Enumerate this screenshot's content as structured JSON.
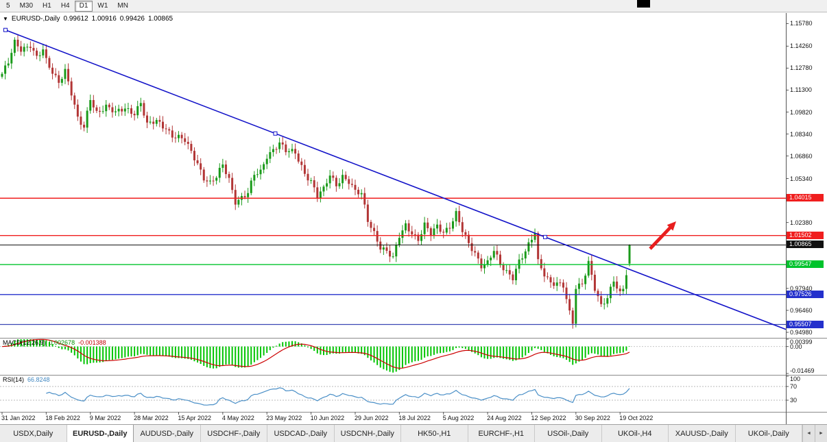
{
  "toolbar": {
    "timeframes": [
      "5",
      "M30",
      "H1",
      "H4",
      "D1",
      "W1",
      "MN"
    ],
    "active_timeframe": "D1"
  },
  "header": {
    "dropdown_icon": "▼",
    "symbol": "EURUSD-,Daily",
    "open": "0.99612",
    "high": "1.00916",
    "low": "0.99426",
    "close": "1.00865"
  },
  "price_axis": {
    "ticks": [
      "1.15780",
      "1.14260",
      "1.12780",
      "1.11300",
      "1.09820",
      "1.08340",
      "1.06860",
      "1.05340",
      "1.02380",
      "0.97940",
      "0.96460",
      "0.94980"
    ],
    "badges": [
      {
        "text": "1.04015",
        "bg": "#f01e1e"
      },
      {
        "text": "1.01502",
        "bg": "#f01e1e"
      },
      {
        "text": "1.00865",
        "bg": "#111111"
      },
      {
        "text": "0.99547",
        "bg": "#00c32c"
      },
      {
        "text": "0.97526",
        "bg": "#2430cc"
      },
      {
        "text": "0.95507",
        "bg": "#2430cc"
      }
    ]
  },
  "indicators": {
    "macd": {
      "name": "MACD(12,26,9)",
      "value_main": "0.002678",
      "value_signal": "-0.001388",
      "axis_labels": [
        "0.00399",
        "0.00",
        "-0.01469"
      ]
    },
    "rsi": {
      "name": "RSI(14)",
      "value": "66.8248",
      "axis_labels": [
        "100",
        "70",
        "30"
      ]
    }
  },
  "date_axis": {
    "labels": [
      "31 Jan 2022",
      "18 Feb 2022",
      "9 Mar 2022",
      "28 Mar 2022",
      "15 Apr 2022",
      "4 May 2022",
      "23 May 2022",
      "10 Jun 2022",
      "29 Jun 2022",
      "18 Jul 2022",
      "5 Aug 2022",
      "24 Aug 2022",
      "12 Sep 2022",
      "30 Sep 2022",
      "19 Oct 2022"
    ]
  },
  "tabs": {
    "scroll_left": "◄",
    "scroll_right": "►",
    "items": [
      {
        "label": "USDX,Daily"
      },
      {
        "label": "EURUSD-,Daily",
        "active": true
      },
      {
        "label": "AUDUSD-,Daily"
      },
      {
        "label": "USDCHF-,Daily"
      },
      {
        "label": "USDCAD-,Daily"
      },
      {
        "label": "USDCNH-,Daily"
      },
      {
        "label": "HK50-,H1"
      },
      {
        "label": "EURCHF-,H1"
      },
      {
        "label": "USOil-,Daily"
      },
      {
        "label": "UKOil-,H4"
      },
      {
        "label": "XAUUSD-,Daily"
      },
      {
        "label": "UKOil-,Daily"
      }
    ]
  },
  "chart_data": {
    "type": "candlestick",
    "title": "EURUSD-,Daily",
    "ylim": [
      0.947,
      1.164
    ],
    "bars_total": 200,
    "bars_per_tick": 14,
    "final_bar": {
      "open": 0.99612,
      "high": 1.00916,
      "low": 0.99426,
      "close": 1.00865
    },
    "close_anchors": [
      [
        0,
        1.124
      ],
      [
        2,
        1.131
      ],
      [
        4,
        1.1445
      ],
      [
        6,
        1.1405
      ],
      [
        9,
        1.144
      ],
      [
        11,
        1.135
      ],
      [
        13,
        1.1395
      ],
      [
        14,
        1.132
      ],
      [
        16,
        1.1245
      ],
      [
        18,
        1.119
      ],
      [
        20,
        1.127
      ],
      [
        22,
        1.111
      ],
      [
        24,
        1.093
      ],
      [
        26,
        1.087
      ],
      [
        28,
        1.1075
      ],
      [
        30,
        1.0985
      ],
      [
        33,
        1.102
      ],
      [
        36,
        1.097
      ],
      [
        39,
        1.101
      ],
      [
        42,
        1.098
      ],
      [
        44,
        1.1045
      ],
      [
        46,
        1.089
      ],
      [
        49,
        1.092
      ],
      [
        52,
        1.088
      ],
      [
        54,
        1.0825
      ],
      [
        56,
        1.0808
      ],
      [
        58,
        1.0785
      ],
      [
        60,
        1.071
      ],
      [
        62,
        1.064
      ],
      [
        64,
        1.0545
      ],
      [
        66,
        1.0505
      ],
      [
        68,
        1.054
      ],
      [
        70,
        1.062
      ],
      [
        72,
        1.053
      ],
      [
        74,
        1.0385
      ],
      [
        76,
        1.041
      ],
      [
        78,
        1.0435
      ],
      [
        80,
        1.0555
      ],
      [
        82,
        1.0575
      ],
      [
        84,
        1.069
      ],
      [
        86,
        1.0735
      ],
      [
        88,
        1.0775
      ],
      [
        90,
        1.0715
      ],
      [
        93,
        1.0705
      ],
      [
        96,
        1.0575
      ],
      [
        98,
        1.052
      ],
      [
        100,
        1.0415
      ],
      [
        102,
        1.0455
      ],
      [
        104,
        1.0555
      ],
      [
        106,
        1.0495
      ],
      [
        108,
        1.0555
      ],
      [
        110,
        1.0515
      ],
      [
        112,
        1.044
      ],
      [
        114,
        1.0425
      ],
      [
        116,
        1.0255
      ],
      [
        118,
        1.0175
      ],
      [
        120,
        1.0075
      ],
      [
        122,
        1.004
      ],
      [
        124,
        0.999
      ],
      [
        126,
        1.0145
      ],
      [
        128,
        1.0225
      ],
      [
        130,
        1.0175
      ],
      [
        132,
        1.012
      ],
      [
        134,
        1.0215
      ],
      [
        136,
        1.0155
      ],
      [
        138,
        1.0215
      ],
      [
        140,
        1.018
      ],
      [
        142,
        1.0215
      ],
      [
        144,
        1.0295
      ],
      [
        146,
        1.0175
      ],
      [
        148,
        1.009
      ],
      [
        150,
        1.0035
      ],
      [
        152,
        0.9955
      ],
      [
        154,
        0.997
      ],
      [
        156,
        1.0045
      ],
      [
        158,
        0.9945
      ],
      [
        160,
        0.9905
      ],
      [
        162,
        0.9875
      ],
      [
        164,
        0.9985
      ],
      [
        166,
        1.004
      ],
      [
        168,
        1.012
      ],
      [
        169,
        1.0165
      ],
      [
        170,
        0.997
      ],
      [
        172,
        0.9895
      ],
      [
        174,
        0.984
      ],
      [
        176,
        0.983
      ],
      [
        178,
        0.9805
      ],
      [
        180,
        0.962
      ],
      [
        181,
        0.956
      ],
      [
        182,
        0.98
      ],
      [
        184,
        0.9835
      ],
      [
        186,
        0.9975
      ],
      [
        188,
        0.979
      ],
      [
        190,
        0.9665
      ],
      [
        192,
        0.9725
      ],
      [
        194,
        0.9855
      ],
      [
        196,
        0.977
      ],
      [
        197,
        0.98
      ],
      [
        198,
        0.99
      ],
      [
        199,
        1.00865
      ]
    ],
    "hlines": [
      {
        "price": 1.04015,
        "color": "#f01e1e",
        "width": 1.4
      },
      {
        "price": 1.01502,
        "color": "#f01e1e",
        "width": 1.4
      },
      {
        "price": 1.00865,
        "color": "#111111",
        "width": 1.0
      },
      {
        "price": 0.99547,
        "color": "#00c32c",
        "width": 1.4
      },
      {
        "price": 0.97526,
        "color": "#2430cc",
        "width": 1.4
      },
      {
        "price": 0.95507,
        "color": "#3a46b4",
        "width": 1.2
      }
    ],
    "trendline": {
      "from": {
        "x": 8,
        "price": 1.1535
      },
      "to": {
        "x": 795,
        "price": 1.014
      },
      "extend": true,
      "color": "#1212c8"
    },
    "arrow": {
      "tail": [
        948,
        344
      ],
      "tip": [
        986,
        304
      ],
      "color": "#e81e1e"
    },
    "candle_colors": {
      "up": "#1a9a1a",
      "down": "#b23535"
    },
    "macd_scale": {
      "max": 0.00399,
      "min": -0.01469
    },
    "macd_colors": {
      "hist": "#00c400",
      "signal": "#cc0000"
    },
    "rsi_color": "#4a8fc7",
    "rsi_levels": [
      70,
      30
    ]
  }
}
